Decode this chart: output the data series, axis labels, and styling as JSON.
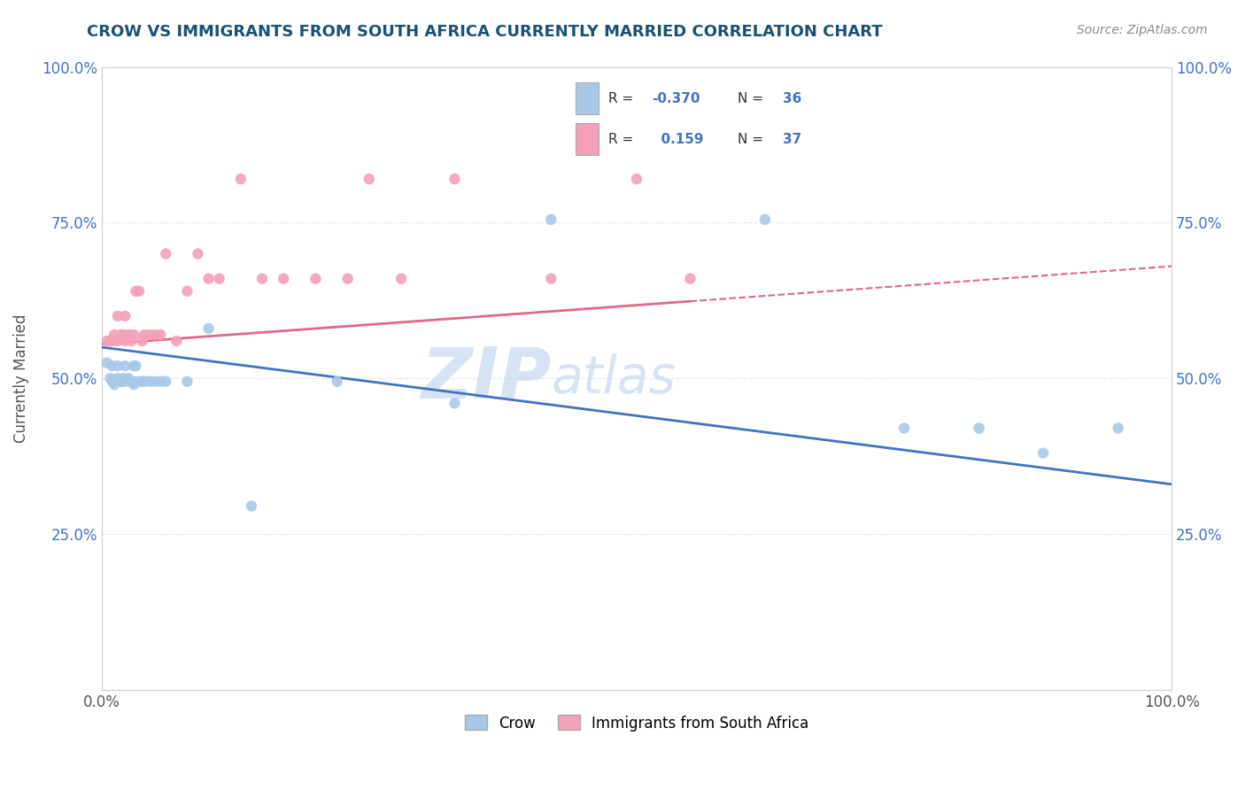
{
  "title": "CROW VS IMMIGRANTS FROM SOUTH AFRICA CURRENTLY MARRIED CORRELATION CHART",
  "source": "Source: ZipAtlas.com",
  "ylabel": "Currently Married",
  "legend_labels": [
    "Crow",
    "Immigrants from South Africa"
  ],
  "crow_color": "#a8c8e8",
  "imm_color": "#f4a0b8",
  "crow_line_color": "#4472c4",
  "imm_line_color": "#e06888",
  "crow_line_style": "-",
  "imm_line_style": "--",
  "xlim": [
    0.0,
    1.0
  ],
  "ylim": [
    0.0,
    1.0
  ],
  "crow_x": [
    0.005,
    0.008,
    0.01,
    0.01,
    0.012,
    0.015,
    0.015,
    0.018,
    0.02,
    0.02,
    0.022,
    0.025,
    0.025,
    0.028,
    0.03,
    0.03,
    0.03,
    0.032,
    0.035,
    0.038,
    0.04,
    0.045,
    0.05,
    0.055,
    0.06,
    0.08,
    0.1,
    0.14,
    0.22,
    0.33,
    0.42,
    0.62,
    0.75,
    0.82,
    0.88,
    0.95
  ],
  "crow_y": [
    0.525,
    0.5,
    0.52,
    0.495,
    0.49,
    0.52,
    0.5,
    0.495,
    0.5,
    0.495,
    0.52,
    0.5,
    0.495,
    0.495,
    0.495,
    0.52,
    0.49,
    0.52,
    0.495,
    0.495,
    0.495,
    0.495,
    0.495,
    0.495,
    0.495,
    0.495,
    0.58,
    0.295,
    0.495,
    0.46,
    0.755,
    0.755,
    0.42,
    0.42,
    0.38,
    0.42
  ],
  "imm_x": [
    0.005,
    0.008,
    0.01,
    0.012,
    0.015,
    0.015,
    0.018,
    0.02,
    0.022,
    0.022,
    0.025,
    0.028,
    0.03,
    0.032,
    0.035,
    0.038,
    0.04,
    0.045,
    0.05,
    0.055,
    0.06,
    0.07,
    0.08,
    0.09,
    0.1,
    0.11,
    0.13,
    0.15,
    0.17,
    0.2,
    0.23,
    0.25,
    0.28,
    0.33,
    0.42,
    0.5,
    0.55
  ],
  "imm_y": [
    0.56,
    0.56,
    0.56,
    0.57,
    0.56,
    0.6,
    0.57,
    0.57,
    0.56,
    0.6,
    0.57,
    0.56,
    0.57,
    0.64,
    0.64,
    0.56,
    0.57,
    0.57,
    0.57,
    0.57,
    0.7,
    0.56,
    0.64,
    0.7,
    0.66,
    0.66,
    0.82,
    0.66,
    0.66,
    0.66,
    0.66,
    0.82,
    0.66,
    0.82,
    0.66,
    0.82,
    0.66
  ],
  "watermark_zip": "ZIP",
  "watermark_atlas": "atlas",
  "title_color": "#1a5276",
  "source_color": "#888888",
  "tick_color_blue": "#4472c4",
  "background_color": "#ffffff",
  "plot_bg_color": "#ffffff",
  "grid_color": "#e8e8e8",
  "ytick_vals": [
    0.0,
    0.25,
    0.5,
    0.75,
    1.0
  ],
  "xtick_vals": [
    0.0,
    0.25,
    0.5,
    0.75,
    1.0
  ]
}
